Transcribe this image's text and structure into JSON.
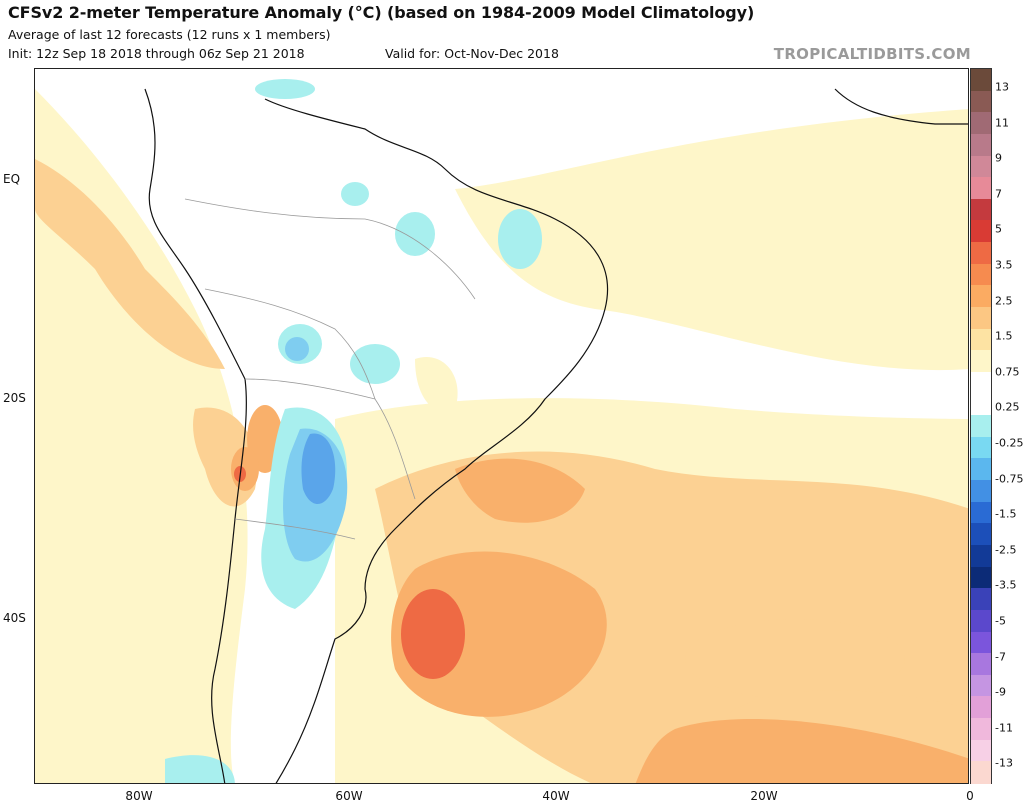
{
  "header": {
    "title": "CFSv2 2-meter Temperature Anomaly (°C) (based on 1984-2009 Model Climatology)",
    "subtitle": "Average of last 12 forecasts (12 runs x 1 members)",
    "init": "Init: 12z Sep 18 2018 through 06z Sep 21 2018",
    "valid": "Valid for: Oct-Nov-Dec 2018",
    "brand": "TROPICALTIDBITS.COM"
  },
  "axes": {
    "lat_labels": [
      "EQ",
      "20S",
      "40S"
    ],
    "lon_labels": [
      "80W",
      "60W",
      "40W",
      "20W",
      "0"
    ]
  },
  "colorbar": {
    "labels": [
      "13",
      "11",
      "9",
      "7",
      "5",
      "3.5",
      "2.5",
      "1.5",
      "0.75",
      "0.25",
      "-0.25",
      "-0.75",
      "-1.5",
      "-2.5",
      "-3.5",
      "-5",
      "-7",
      "-9",
      "-11",
      "-13"
    ],
    "colors": [
      "#6b4a3a",
      "#8a5a54",
      "#a06a74",
      "#b87a8a",
      "#d08898",
      "#e78a98",
      "#c43a3e",
      "#d93b34",
      "#ee6a44",
      "#f68b4f",
      "#fbab62",
      "#fcc783",
      "#fde3a3",
      "#fef6c9",
      "#ffffff",
      "#ffffff",
      "#a8efee",
      "#79d9f2",
      "#5bb7ee",
      "#4290e4",
      "#2a6bd4",
      "#1c4fb9",
      "#123a97",
      "#0c2b77",
      "#3a42b8",
      "#5b48cc",
      "#7b55dc",
      "#a877df",
      "#c595e2",
      "#e2a0d8",
      "#f0b8dc",
      "#f7d0e6",
      "#fbd8d0"
    ]
  },
  "colors": {
    "land_outline": "#111111",
    "warm_light": "#fef6c9",
    "warm_medium": "#fcd193",
    "warm_strong": "#f9b06b",
    "warm_peak": "#ee6a44",
    "cool_light": "#a8efee",
    "cool_medium": "#7fcdf0",
    "cool_strong": "#5aa5ea",
    "brand_gray": "#9a9a9a"
  }
}
